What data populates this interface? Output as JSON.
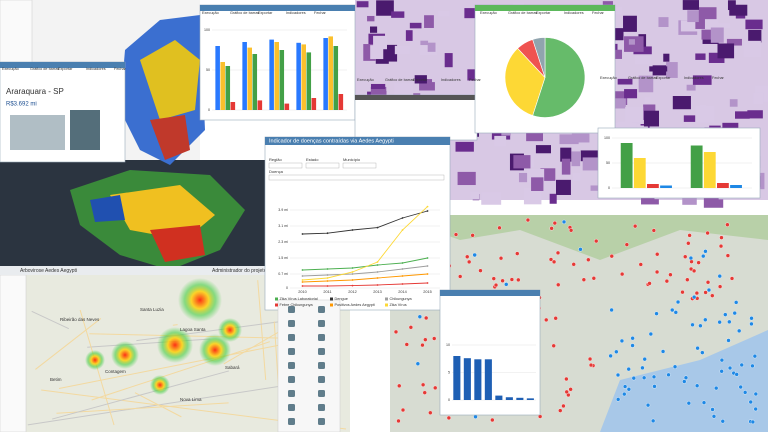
{
  "toolbar": [
    "Execução",
    "Gráfico de barras",
    "Exportar",
    "Indicadores",
    "Fechar"
  ],
  "economy": {
    "title": "Araraquara - SP",
    "value": "R$3.692 mi"
  },
  "brazil_map": {
    "title": "Arbovirose Aedes Aegypti",
    "user": "Administrador do projeto"
  },
  "disease_window": {
    "title": "Indicador de doenças contraídas via Aedes Aegypti",
    "filters": [
      "Região",
      "Estado",
      "Município",
      "Doença"
    ]
  },
  "heatmap": {
    "places": [
      "Lagoa Santa",
      "Ribeirão das Neves",
      "Santa Luzia",
      "Contagem",
      "Betim",
      "Sabará",
      "Nova Lima"
    ]
  },
  "charts": {
    "line": {
      "type": "line",
      "categories": [
        "2010",
        "2011",
        "2012",
        "2013",
        "2014",
        "2015"
      ],
      "ylim": [
        0,
        4.4
      ],
      "yticks": [
        0,
        {
          "value": 0.7,
          "label": "0.7 mi"
        },
        {
          "value": 1.5,
          "label": "1.5 mi"
        },
        {
          "value": 2.3,
          "label": "2.3 mi"
        },
        {
          "value": 3.1,
          "label": "3.1 mi"
        },
        {
          "value": 3.9,
          "label": "3.9 mi"
        }
      ],
      "series": [
        {
          "name": "Zika Vírus Laboratorial",
          "color": "#4caf50",
          "values": [
            0.9,
            0.95,
            1.0,
            1.15,
            1.25,
            1.5
          ]
        },
        {
          "name": "Dengue",
          "color": "#333333",
          "values": [
            2.7,
            2.74,
            2.9,
            3.02,
            3.5,
            3.85
          ]
        },
        {
          "name": "Chikungunya",
          "color": "#9e9e9e",
          "values": [
            0.6,
            0.65,
            0.7,
            0.8,
            0.95,
            1.1
          ]
        },
        {
          "name": "Febre Chikungunya",
          "color": "#e53935",
          "values": [
            0.1,
            0.1,
            0.12,
            0.15,
            0.2,
            0.25
          ]
        },
        {
          "name": "Positivos Aedes Aegypti",
          "color": "#ff9800",
          "values": [
            0.3,
            0.35,
            0.4,
            0.5,
            0.6,
            0.7
          ]
        },
        {
          "name": "Zika Vírus",
          "color": "#fdd835",
          "values": [
            0.4,
            0.5,
            0.8,
            1.3,
            2.9,
            4.07
          ]
        }
      ]
    },
    "grouped": {
      "type": "bar",
      "categories": [
        null,
        null,
        null,
        null,
        null
      ],
      "ylim": [
        0,
        100
      ],
      "yticks": [
        0,
        50,
        100
      ],
      "series": [
        {
          "color": "#2979ff",
          "values": [
            80,
            85,
            88,
            84,
            90
          ]
        },
        {
          "color": "#fbc02d",
          "values": [
            60,
            78,
            85,
            82,
            92
          ]
        },
        {
          "color": "#43a047",
          "values": [
            55,
            70,
            75,
            72,
            80
          ]
        },
        {
          "color": "#e53935",
          "values": [
            10,
            12,
            8,
            15,
            20
          ]
        }
      ]
    },
    "pie": {
      "type": "pie",
      "values": [
        55,
        33,
        7,
        5
      ],
      "colors": [
        "#66bb6a",
        "#fdd835",
        "#ef5350",
        "#90a4ae"
      ]
    },
    "state": {
      "type": "bar",
      "categories": [
        null,
        null
      ],
      "ylim": [
        0,
        100
      ],
      "yticks": [
        0,
        50,
        100
      ],
      "series": [
        {
          "color": "#43a047",
          "values": [
            90,
            85
          ]
        },
        {
          "color": "#fdd835",
          "values": [
            60,
            72
          ]
        },
        {
          "color": "#e53935",
          "values": [
            8,
            10
          ]
        },
        {
          "color": "#1e88e5",
          "values": [
            5,
            6
          ]
        }
      ]
    },
    "ranking": {
      "type": "bar",
      "categories": [
        null,
        null,
        null,
        null,
        null,
        null,
        null,
        null
      ],
      "ylim": [
        0,
        10
      ],
      "yticks": [
        0,
        5,
        10
      ],
      "series": [
        {
          "color": "#1e5fb4",
          "values": [
            8,
            7.6,
            7.4,
            7.4,
            0.8,
            0.5,
            0.4,
            0.3
          ]
        }
      ]
    }
  }
}
